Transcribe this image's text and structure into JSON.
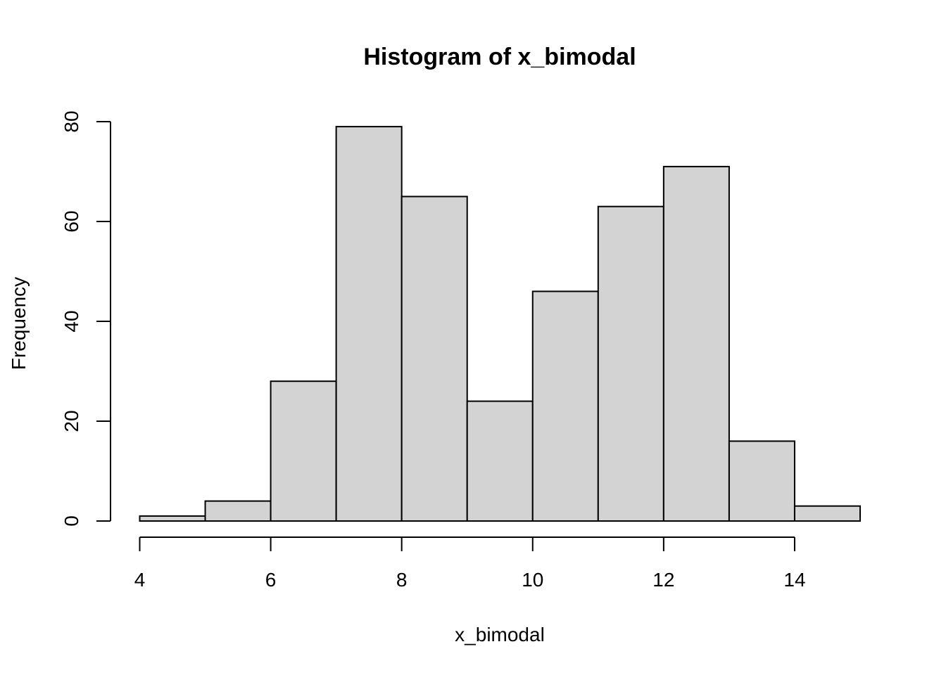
{
  "chart_data": {
    "type": "bar",
    "title": "Histogram of x_bimodal",
    "xlabel": "x_bimodal",
    "ylabel": "Frequency",
    "bin_width": 1,
    "bins": [
      {
        "start": 4,
        "end": 5,
        "count": 1
      },
      {
        "start": 5,
        "end": 6,
        "count": 4
      },
      {
        "start": 6,
        "end": 7,
        "count": 28
      },
      {
        "start": 7,
        "end": 8,
        "count": 79
      },
      {
        "start": 8,
        "end": 9,
        "count": 65
      },
      {
        "start": 9,
        "end": 10,
        "count": 24
      },
      {
        "start": 10,
        "end": 11,
        "count": 46
      },
      {
        "start": 11,
        "end": 12,
        "count": 63
      },
      {
        "start": 12,
        "end": 13,
        "count": 71
      },
      {
        "start": 13,
        "end": 14,
        "count": 16
      },
      {
        "start": 14,
        "end": 15,
        "count": 3
      }
    ],
    "xlim": [
      4,
      15
    ],
    "ylim": [
      0,
      80
    ],
    "x_ticks": [
      "4",
      "6",
      "8",
      "10",
      "12",
      "14"
    ],
    "y_ticks": [
      "0",
      "20",
      "40",
      "60",
      "80"
    ],
    "fill_color": "#d3d3d3",
    "edge_color": "#000000",
    "grid": false,
    "legend": "none"
  }
}
